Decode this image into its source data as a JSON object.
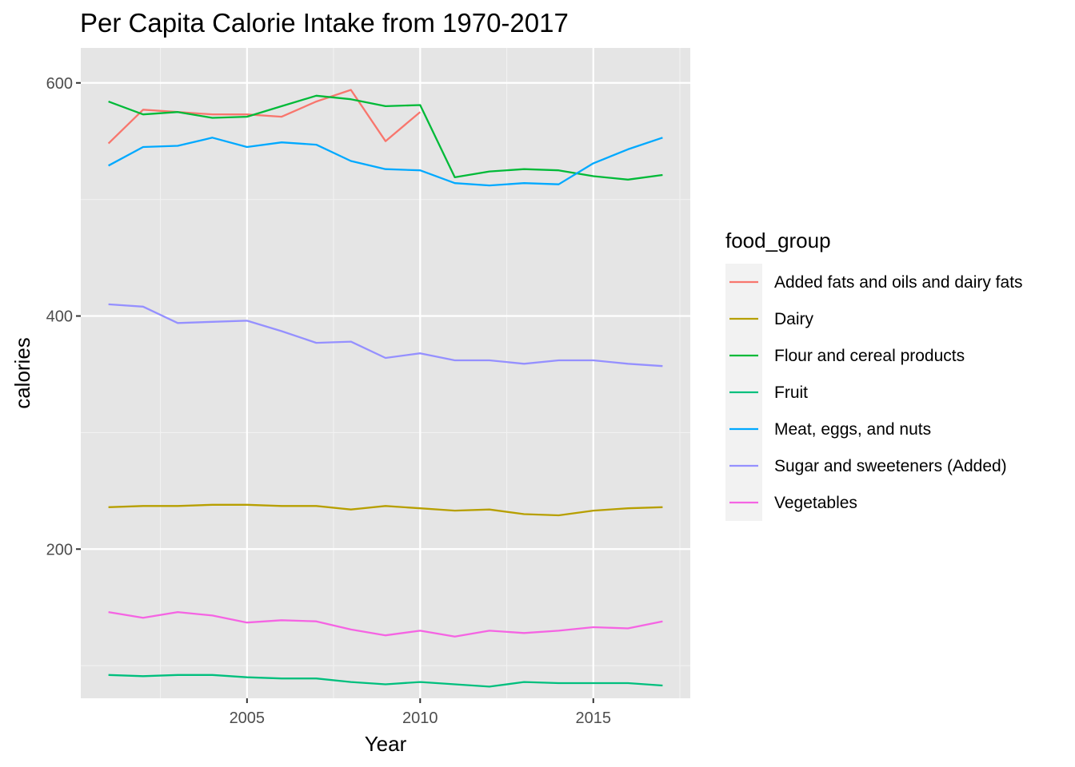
{
  "chart_data": {
    "type": "line",
    "title": "Per Capita Calorie Intake from 1970-2017",
    "xlabel": "Year",
    "ylabel": "calories",
    "xlim": [
      2000.2,
      2017.8
    ],
    "ylim": [
      72,
      630
    ],
    "x_ticks": [
      2005,
      2010,
      2015
    ],
    "y_ticks": [
      200,
      400,
      600
    ],
    "grid": true,
    "legend": {
      "title": "food_group",
      "position": "right"
    },
    "series": [
      {
        "name": "Added fats and oils and dairy fats",
        "color": "#F8766D",
        "x": [
          2001,
          2002,
          2003,
          2004,
          2005,
          2006,
          2007,
          2008,
          2009,
          2010
        ],
        "y": [
          548,
          577,
          575,
          573,
          573,
          571,
          584,
          594,
          550,
          575
        ]
      },
      {
        "name": "Dairy",
        "color": "#B79F00",
        "x": [
          2001,
          2002,
          2003,
          2004,
          2005,
          2006,
          2007,
          2008,
          2009,
          2010,
          2011,
          2012,
          2013,
          2014,
          2015,
          2016,
          2017
        ],
        "y": [
          236,
          237,
          237,
          238,
          238,
          237,
          237,
          234,
          237,
          235,
          233,
          234,
          230,
          229,
          233,
          235,
          236
        ]
      },
      {
        "name": "Flour and cereal products",
        "color": "#00BA38",
        "x": [
          2001,
          2002,
          2003,
          2004,
          2005,
          2006,
          2007,
          2008,
          2009,
          2010,
          2011,
          2012,
          2013,
          2014,
          2015,
          2016,
          2017
        ],
        "y": [
          584,
          573,
          575,
          570,
          571,
          580,
          589,
          586,
          580,
          581,
          519,
          524,
          526,
          525,
          520,
          517,
          521
        ]
      },
      {
        "name": "Fruit",
        "color": "#00BF7D",
        "x": [
          2001,
          2002,
          2003,
          2004,
          2005,
          2006,
          2007,
          2008,
          2009,
          2010,
          2011,
          2012,
          2013,
          2014,
          2015,
          2016,
          2017
        ],
        "y": [
          92,
          91,
          92,
          92,
          90,
          89,
          89,
          86,
          84,
          86,
          84,
          82,
          86,
          85,
          85,
          85,
          83
        ]
      },
      {
        "name": "Meat, eggs, and nuts",
        "color": "#00A9FF",
        "x": [
          2001,
          2002,
          2003,
          2004,
          2005,
          2006,
          2007,
          2008,
          2009,
          2010,
          2011,
          2012,
          2013,
          2014,
          2015,
          2016,
          2017
        ],
        "y": [
          529,
          545,
          546,
          553,
          545,
          549,
          547,
          533,
          526,
          525,
          514,
          512,
          514,
          513,
          531,
          543,
          553
        ]
      },
      {
        "name": "Sugar and sweeteners (Added)",
        "color": "#9590FF",
        "x": [
          2001,
          2002,
          2003,
          2004,
          2005,
          2006,
          2007,
          2008,
          2009,
          2010,
          2011,
          2012,
          2013,
          2014,
          2015,
          2016,
          2017
        ],
        "y": [
          410,
          408,
          394,
          395,
          396,
          387,
          377,
          378,
          364,
          368,
          362,
          362,
          359,
          362,
          362,
          359,
          357
        ]
      },
      {
        "name": "Vegetables",
        "color": "#F564E3",
        "x": [
          2001,
          2002,
          2003,
          2004,
          2005,
          2006,
          2007,
          2008,
          2009,
          2010,
          2011,
          2012,
          2013,
          2014,
          2015,
          2016,
          2017
        ],
        "y": [
          146,
          141,
          146,
          143,
          137,
          139,
          138,
          131,
          126,
          130,
          125,
          130,
          128,
          130,
          133,
          132,
          138
        ]
      }
    ]
  }
}
